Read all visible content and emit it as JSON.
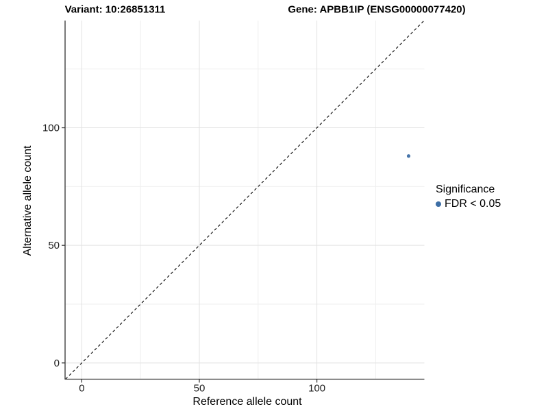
{
  "titles": {
    "variant": "Variant: 10:26851311",
    "gene": "Gene: APBB1IP (ENSG00000077420)"
  },
  "axes": {
    "x_label": "Reference allele count",
    "y_label": "Alternative allele count"
  },
  "legend": {
    "title": "Significance",
    "items": [
      {
        "label": "FDR < 0.05",
        "color": "#3d6ea5"
      }
    ]
  },
  "chart_data": {
    "type": "scatter",
    "title": "Variant: 10:26851311 | Gene: APBB1IP (ENSG00000077420)",
    "xlabel": "Reference allele count",
    "ylabel": "Alternative allele count",
    "points": [
      {
        "x": 139,
        "y": 88,
        "series": "FDR < 0.05",
        "color": "#3d6ea5"
      }
    ],
    "identity_line": {
      "equation": "y = x",
      "style": "dashed",
      "color": "#000000"
    },
    "x": {
      "ticks": [
        0,
        50,
        100
      ],
      "minor_ticks": [
        25,
        75,
        125
      ],
      "domain": [
        -7.1,
        145.7
      ]
    },
    "y": {
      "ticks": [
        0,
        50,
        100
      ],
      "minor_ticks": [
        25,
        75,
        125
      ],
      "domain": [
        -6.9,
        145.6
      ]
    },
    "grid": true,
    "legend_position": "right"
  },
  "colors": {
    "significance": "#3d6ea5",
    "axis_line": "#2f2f2f",
    "tick_label": "#1a1a1a",
    "grid_major": "#e2e2e2",
    "grid_minor": "#efefef",
    "dashed_line": "#000000",
    "background": "#ffffff"
  }
}
